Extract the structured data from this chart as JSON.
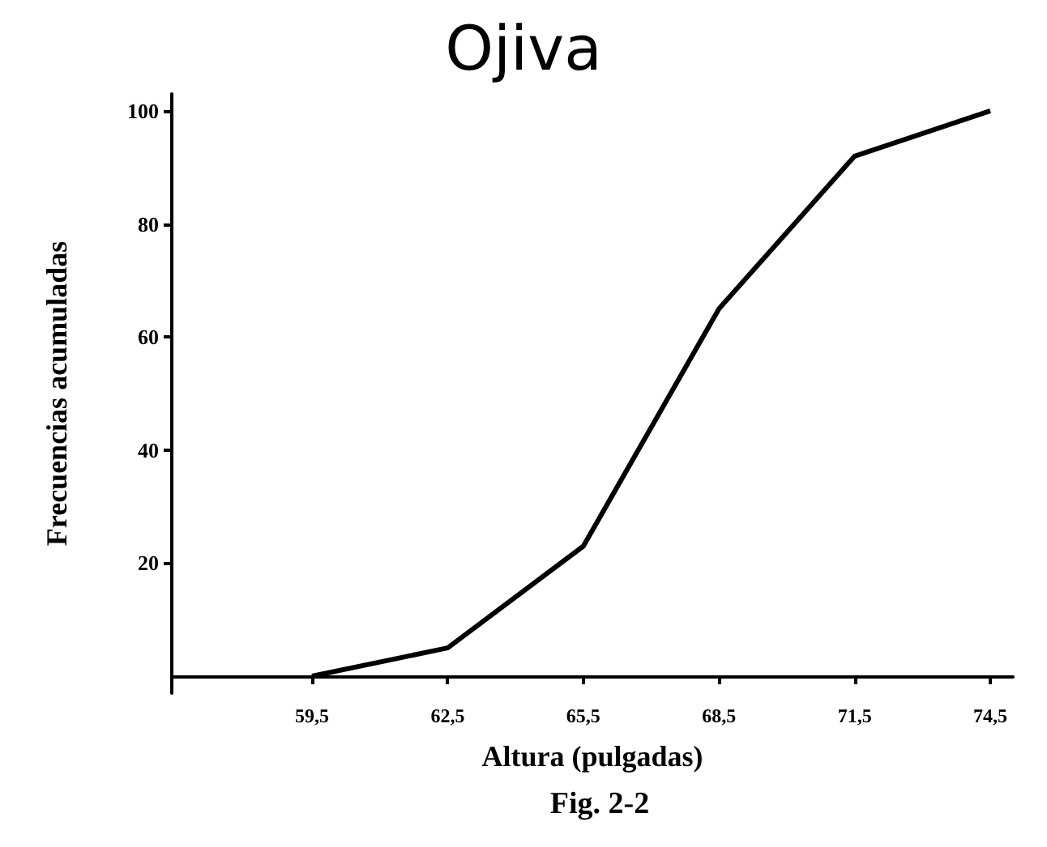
{
  "chart_data": {
    "type": "line",
    "title": "Ojiva",
    "xlabel": "Altura (pulgadas)",
    "ylabel": "Frecuencias acumuladas",
    "annotations": [
      "Fig. 2-2"
    ],
    "x": [
      59.5,
      62.5,
      65.5,
      68.5,
      71.5,
      74.5
    ],
    "series": [
      {
        "color": "#000000",
        "values": [
          0,
          5,
          23,
          65,
          92,
          100
        ]
      }
    ],
    "xlim": [
      56.4,
      75
    ],
    "xticks": [
      {
        "value": 59.5,
        "label": "59,5"
      },
      {
        "value": 62.5,
        "label": "62,5"
      },
      {
        "value": 65.5,
        "label": "65,5"
      },
      {
        "value": 68.5,
        "label": "68,5"
      },
      {
        "value": 71.5,
        "label": "71,5"
      },
      {
        "value": 74.5,
        "label": "74,5"
      }
    ],
    "ylim": [
      -3,
      103
    ],
    "yticks": [
      20,
      40,
      60,
      80,
      100
    ],
    "grid": false,
    "marker": "none",
    "line_style": "solid"
  }
}
